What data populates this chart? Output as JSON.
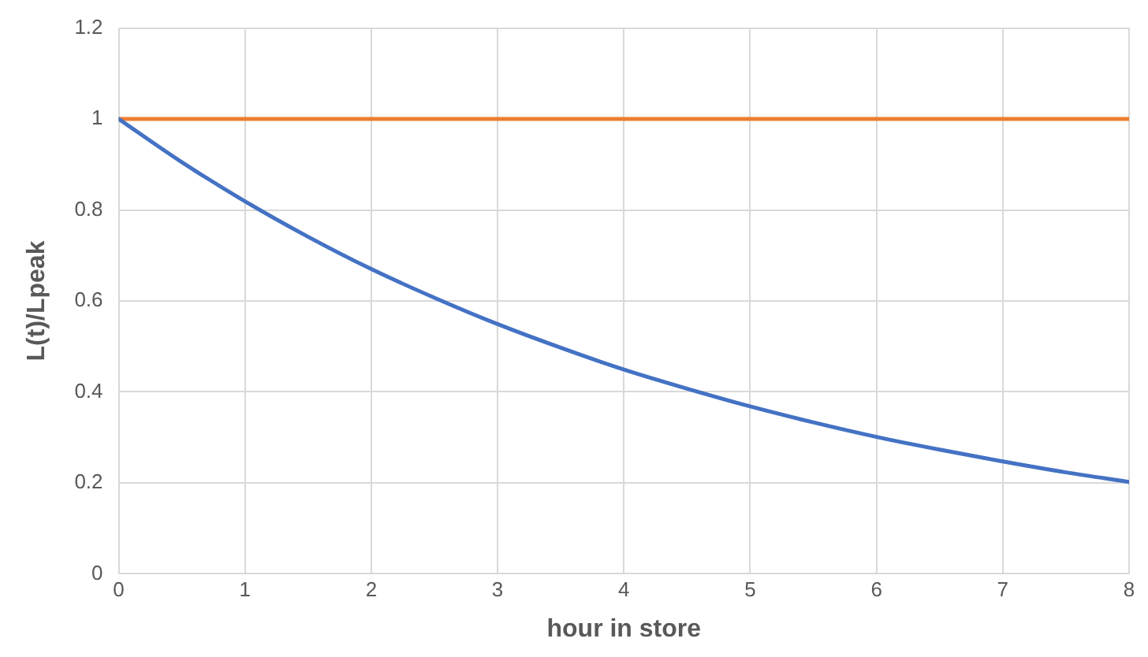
{
  "chart_data": {
    "type": "line",
    "xlabel": "hour in store",
    "ylabel": "L(t)/Lpeak",
    "series": [
      {
        "color": "#4472c4",
        "x": [
          0,
          0.5,
          1,
          1.5,
          2,
          2.5,
          3,
          3.5,
          4,
          4.5,
          5,
          5.5,
          6,
          6.5,
          7,
          7.5,
          8
        ],
        "values": [
          1,
          0.905,
          0.819,
          0.741,
          0.67,
          0.607,
          0.549,
          0.497,
          0.449,
          0.407,
          0.368,
          0.333,
          0.301,
          0.273,
          0.247,
          0.223,
          0.202
        ]
      },
      {
        "color": "#ed7d31",
        "x": [
          0,
          8
        ],
        "values": [
          1,
          1
        ]
      }
    ],
    "xlim": [
      0,
      8
    ],
    "xticks": [
      0,
      1,
      2,
      3,
      4,
      5,
      6,
      7,
      8
    ],
    "ylim": [
      0,
      1.2
    ],
    "yticks": [
      0,
      0.2,
      0.4,
      0.6,
      0.8,
      1,
      1.2
    ],
    "grid": true,
    "legend": false,
    "marker": "none",
    "line_style": "solid"
  }
}
